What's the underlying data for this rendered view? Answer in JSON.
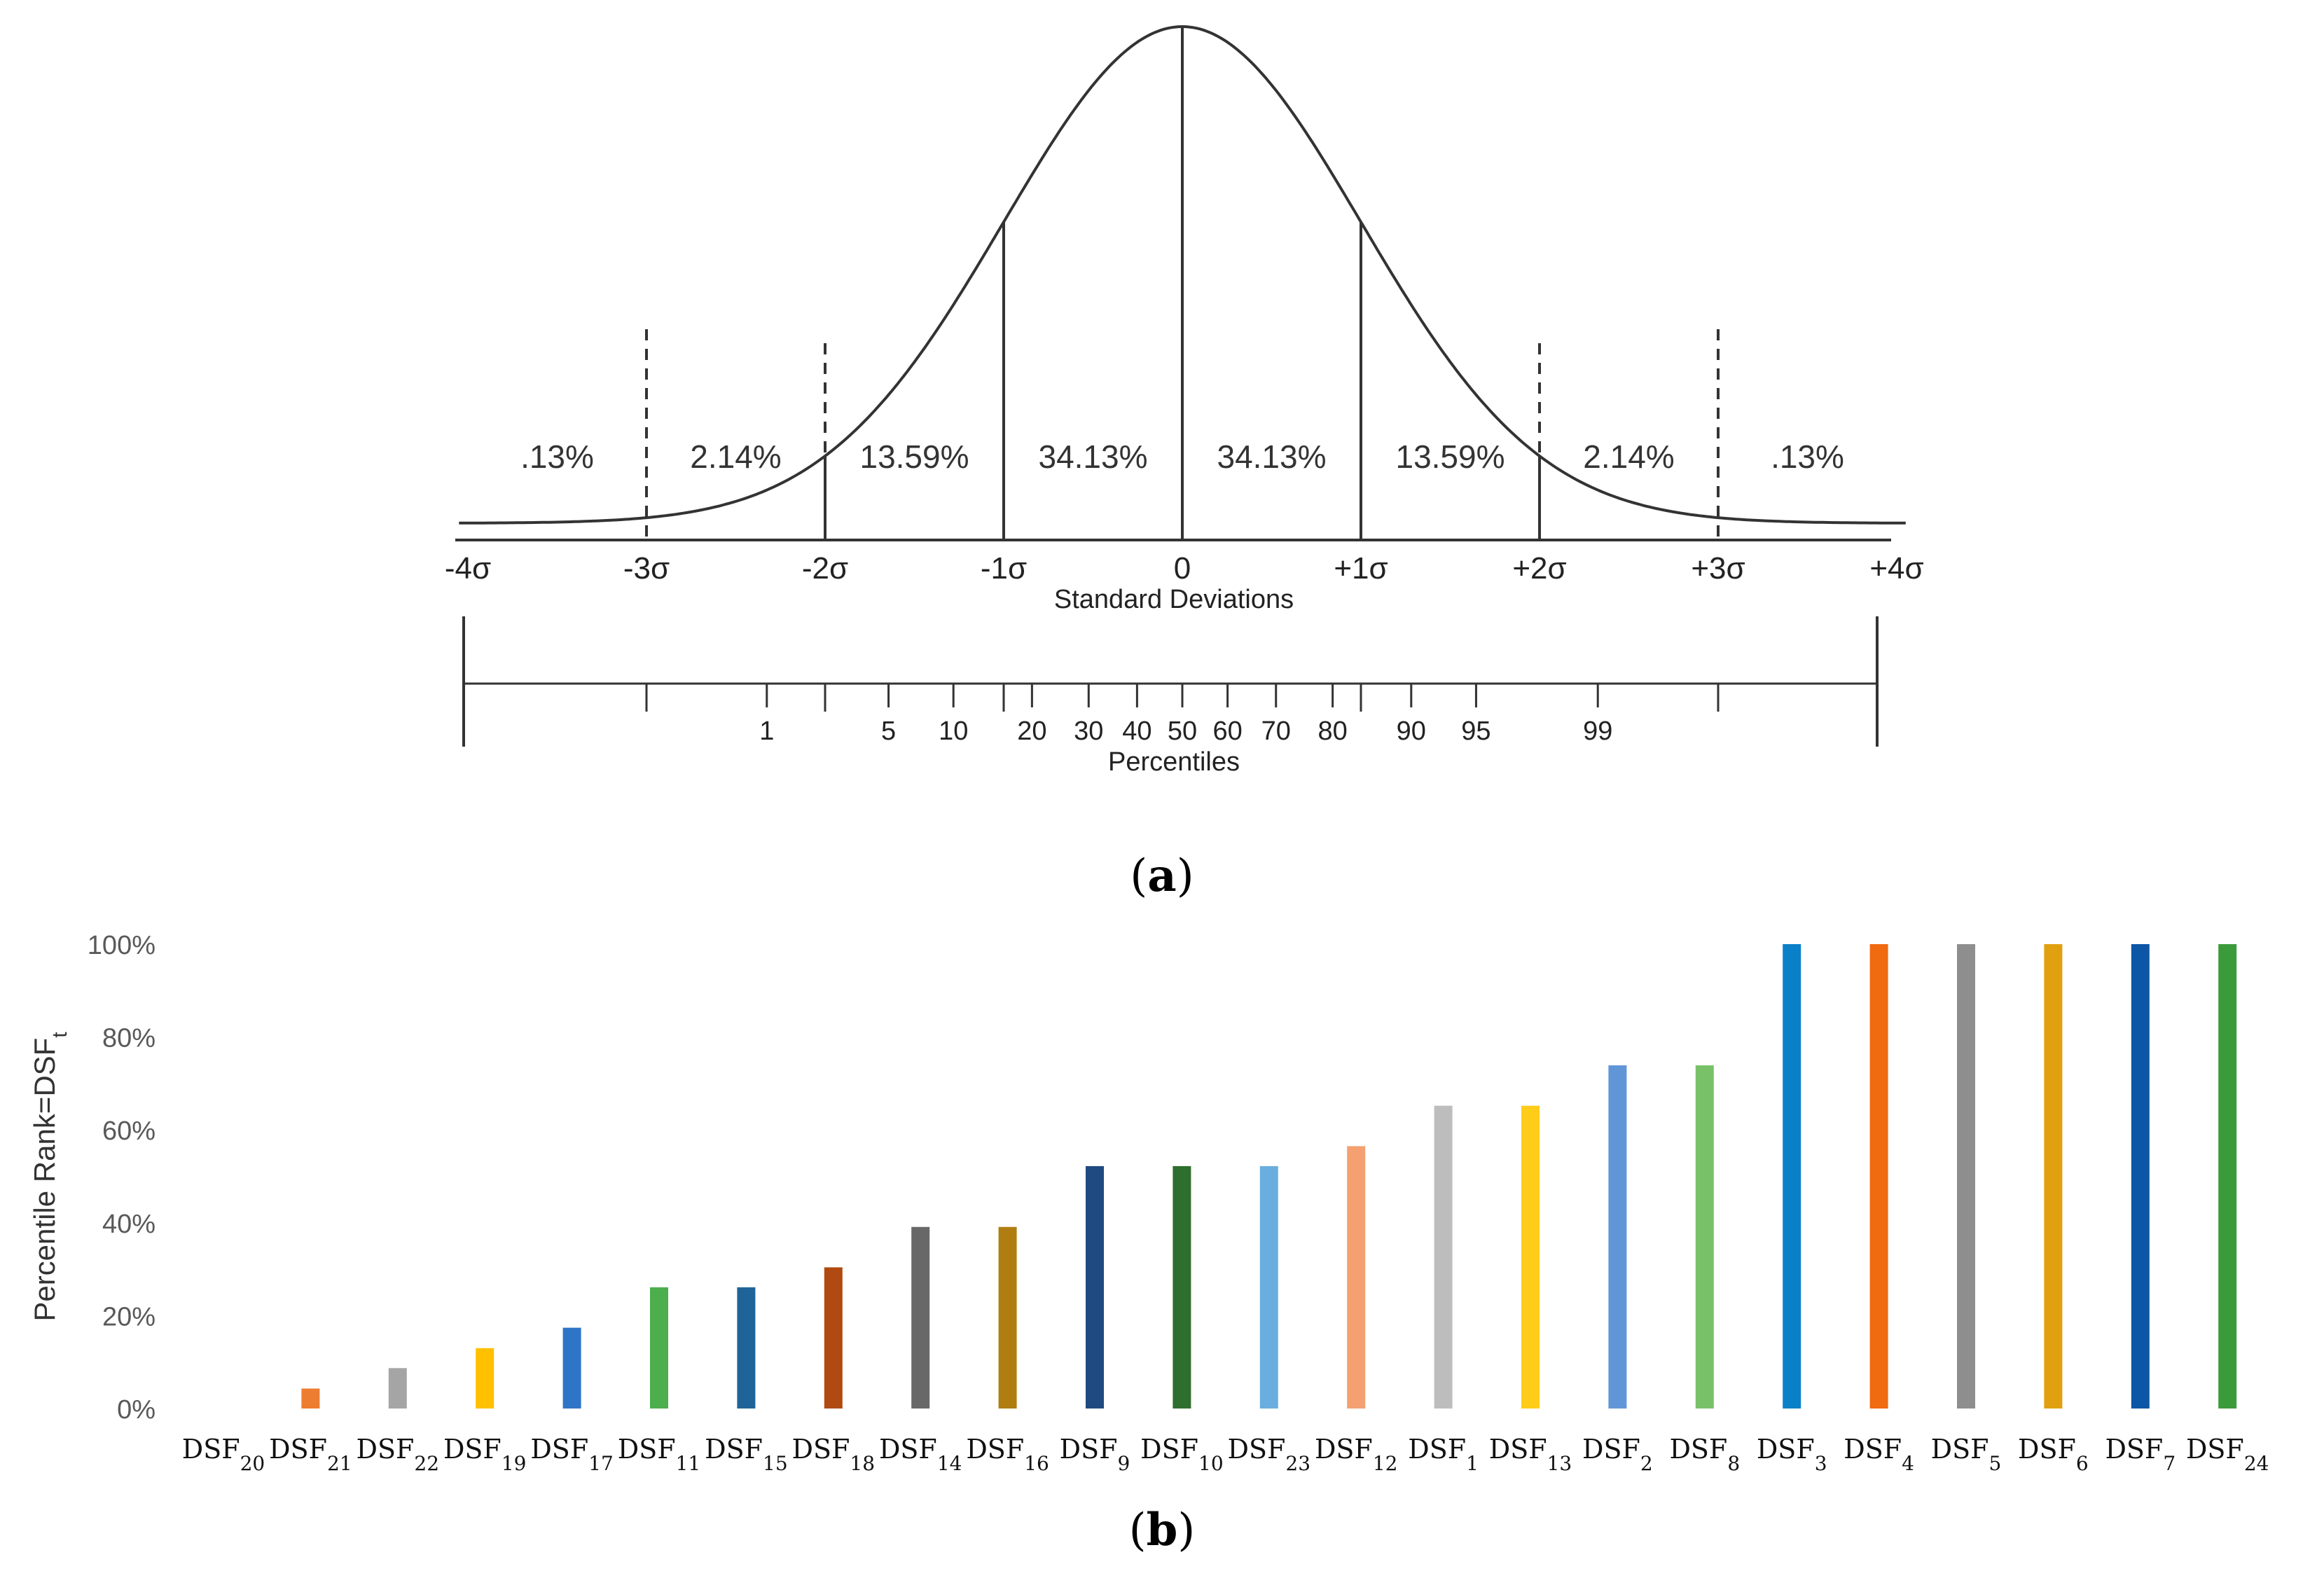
{
  "chart_data": [
    {
      "type": "line",
      "subtype": "normal-distribution-curve",
      "panel_label": "(a)",
      "xlabel": "Standard Deviations",
      "xlim": [
        -4,
        4
      ],
      "x_ticks": [
        {
          "value": -4,
          "label": "-4σ"
        },
        {
          "value": -3,
          "label": "-3σ"
        },
        {
          "value": -2,
          "label": "-2σ"
        },
        {
          "value": -1,
          "label": "-1σ"
        },
        {
          "value": 0,
          "label": "0"
        },
        {
          "value": 1,
          "label": "+1σ"
        },
        {
          "value": 2,
          "label": "+2σ"
        },
        {
          "value": 3,
          "label": "+3σ"
        },
        {
          "value": 4,
          "label": "+4σ"
        }
      ],
      "regions": [
        {
          "from": -4,
          "to": -3,
          "label": ".13%"
        },
        {
          "from": -3,
          "to": -2,
          "label": "2.14%"
        },
        {
          "from": -2,
          "to": -1,
          "label": "13.59%"
        },
        {
          "from": -1,
          "to": 0,
          "label": "34.13%"
        },
        {
          "from": 0,
          "to": 1,
          "label": "34.13%"
        },
        {
          "from": 1,
          "to": 2,
          "label": "13.59%"
        },
        {
          "from": 2,
          "to": 3,
          "label": "2.14%"
        },
        {
          "from": 3,
          "to": 4,
          "label": ".13%"
        }
      ],
      "percentile_axis": {
        "label": "Percentiles",
        "ticks": [
          {
            "value": 1,
            "label": "1"
          },
          {
            "value": 5,
            "label": "5"
          },
          {
            "value": 10,
            "label": "10"
          },
          {
            "value": 20,
            "label": "20"
          },
          {
            "value": 30,
            "label": "30"
          },
          {
            "value": 40,
            "label": "40"
          },
          {
            "value": 50,
            "label": "50"
          },
          {
            "value": 60,
            "label": "60"
          },
          {
            "value": 70,
            "label": "70"
          },
          {
            "value": 80,
            "label": "80"
          },
          {
            "value": 90,
            "label": "90"
          },
          {
            "value": 95,
            "label": "95"
          },
          {
            "value": 99,
            "label": "99"
          }
        ]
      }
    },
    {
      "type": "bar",
      "panel_label": "(b)",
      "ylabel": "Percentile Rank=DSF",
      "ylabel_subscript": "t",
      "ylim": [
        0,
        100
      ],
      "y_ticks": [
        "0%",
        "20%",
        "40%",
        "60%",
        "80%",
        "100%"
      ],
      "categories": [
        {
          "base": "DSF",
          "sub": "20"
        },
        {
          "base": "DSF",
          "sub": "21"
        },
        {
          "base": "DSF",
          "sub": "22"
        },
        {
          "base": "DSF",
          "sub": "19"
        },
        {
          "base": "DSF",
          "sub": "17"
        },
        {
          "base": "DSF",
          "sub": "11"
        },
        {
          "base": "DSF",
          "sub": "15"
        },
        {
          "base": "DSF",
          "sub": "18"
        },
        {
          "base": "DSF",
          "sub": "14"
        },
        {
          "base": "DSF",
          "sub": "16"
        },
        {
          "base": "DSF",
          "sub": "9"
        },
        {
          "base": "DSF",
          "sub": "10"
        },
        {
          "base": "DSF",
          "sub": "23"
        },
        {
          "base": "DSF",
          "sub": "12"
        },
        {
          "base": "DSF",
          "sub": "1"
        },
        {
          "base": "DSF",
          "sub": "13"
        },
        {
          "base": "DSF",
          "sub": "2"
        },
        {
          "base": "DSF",
          "sub": "8"
        },
        {
          "base": "DSF",
          "sub": "3"
        },
        {
          "base": "DSF",
          "sub": "4"
        },
        {
          "base": "DSF",
          "sub": "5"
        },
        {
          "base": "DSF",
          "sub": "6"
        },
        {
          "base": "DSF",
          "sub": "7"
        },
        {
          "base": "DSF",
          "sub": "24"
        }
      ],
      "values": [
        0,
        4.3,
        8.7,
        13,
        17.4,
        26.1,
        26.1,
        30.4,
        39.1,
        39.1,
        52.2,
        52.2,
        52.2,
        56.5,
        65.2,
        65.2,
        73.9,
        73.9,
        100,
        100,
        100,
        100,
        100,
        100
      ],
      "colors": [
        "#4472c4",
        "#ed7d31",
        "#a5a5a5",
        "#ffc000",
        "#2e75c7",
        "#4cae4c",
        "#1f6498",
        "#b04a10",
        "#686868",
        "#b07d10",
        "#1f4a80",
        "#2e6e2e",
        "#6aaee0",
        "#f4a070",
        "#bdbdbd",
        "#ffcc1a",
        "#6096d8",
        "#79c169",
        "#0a80c8",
        "#f06a10",
        "#8e8e8e",
        "#e0a010",
        "#0d56a5",
        "#3b9b3b"
      ]
    }
  ]
}
